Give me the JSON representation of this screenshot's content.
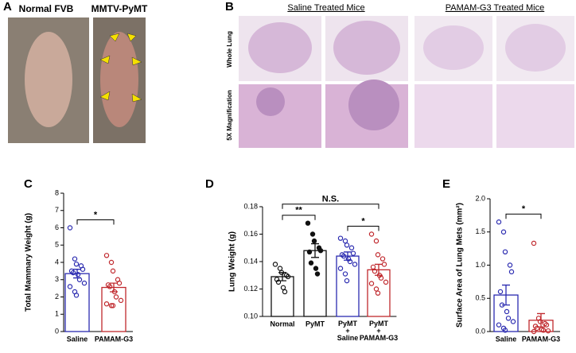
{
  "panels": [
    {
      "label": "A",
      "captions": [
        "Normal FVB",
        "MMTV-PyMT"
      ]
    },
    {
      "label": "B",
      "groups": [
        "Saline Treated Mice",
        "PAMAM-G3 Treated Mice"
      ],
      "rows": [
        "Whole Lung",
        "5X Magnification"
      ]
    }
  ],
  "chart_data": [
    {
      "type": "bar",
      "panel": "C",
      "ylabel": "Total Mammary Weight (g)",
      "categories": [
        "Saline",
        "PAMAM-G3"
      ],
      "values": [
        3.35,
        2.55
      ],
      "errors": [
        0.25,
        0.25
      ],
      "colors": [
        "#2b2bb0",
        "#c0282d"
      ],
      "markers": [
        "open",
        "open"
      ],
      "points": [
        [
          6.0,
          4.2,
          3.9,
          3.8,
          3.6,
          3.5,
          3.4,
          3.3,
          3.0,
          2.8,
          2.6,
          2.3,
          2.1
        ],
        [
          4.4,
          4.0,
          3.5,
          3.0,
          2.8,
          2.7,
          2.6,
          2.3,
          2.0,
          1.8,
          1.6,
          1.5,
          1.5
        ]
      ],
      "ylim": [
        0,
        8
      ],
      "yticks": [
        0,
        1,
        2,
        3,
        4,
        5,
        6,
        7,
        8
      ],
      "comparisons": [
        {
          "label": "*",
          "groups": [
            0,
            1
          ]
        }
      ]
    },
    {
      "type": "bar",
      "panel": "D",
      "ylabel": "Lung Weight (g)",
      "categories": [
        "Normal",
        "PyMT",
        "PyMT + Saline",
        "PyMT + PAMAM-G3"
      ],
      "values": [
        0.129,
        0.148,
        0.144,
        0.134
      ],
      "errors": [
        0.003,
        0.005,
        0.003,
        0.004
      ],
      "colors": [
        "#111111",
        "#111111",
        "#2b2bb0",
        "#c0282d"
      ],
      "markers": [
        "open",
        "filled",
        "open",
        "open"
      ],
      "points": [
        [
          0.138,
          0.135,
          0.132,
          0.13,
          0.129,
          0.127,
          0.125,
          0.121,
          0.118
        ],
        [
          0.168,
          0.16,
          0.155,
          0.15,
          0.148,
          0.147,
          0.139,
          0.135,
          0.131
        ],
        [
          0.157,
          0.155,
          0.152,
          0.15,
          0.146,
          0.145,
          0.144,
          0.142,
          0.14,
          0.138,
          0.135,
          0.131,
          0.126
        ],
        [
          0.16,
          0.155,
          0.145,
          0.142,
          0.138,
          0.136,
          0.133,
          0.13,
          0.128,
          0.125,
          0.124,
          0.12,
          0.117
        ]
      ],
      "ylim": [
        0.1,
        0.18
      ],
      "yticks": [
        {
          "value": 0.1,
          "label": "0.10"
        },
        0.12,
        0.14,
        0.16,
        0.18
      ],
      "comparisons": [
        {
          "label": "**",
          "groups": [
            0,
            1
          ]
        },
        {
          "label": "*",
          "groups": [
            2,
            3
          ]
        },
        {
          "label": "N.S.",
          "groups": [
            0,
            3
          ]
        }
      ]
    },
    {
      "type": "bar",
      "panel": "E",
      "ylabel": "Surface Area of Lung Mets (mm²)",
      "categories": [
        "Saline",
        "PAMAM-G3"
      ],
      "values": [
        0.55,
        0.17
      ],
      "errors": [
        0.15,
        0.1
      ],
      "colors": [
        "#2b2bb0",
        "#c0282d"
      ],
      "markers": [
        "open",
        "open"
      ],
      "points": [
        [
          1.65,
          1.5,
          1.2,
          1.0,
          0.9,
          0.6,
          0.4,
          0.3,
          0.2,
          0.15,
          0.1,
          0.05,
          0.02
        ],
        [
          1.33,
          0.2,
          0.15,
          0.12,
          0.1,
          0.08,
          0.05,
          0.03,
          0.02,
          0.01,
          0.0
        ]
      ],
      "ylim": [
        0,
        2
      ],
      "yticks": [
        {
          "value": 0,
          "label": "0.0"
        },
        0.5,
        {
          "value": 1,
          "label": "1.0"
        },
        1.5,
        {
          "value": 2,
          "label": "2.0"
        }
      ],
      "comparisons": [
        {
          "label": "*",
          "groups": [
            0,
            1
          ]
        }
      ]
    }
  ]
}
